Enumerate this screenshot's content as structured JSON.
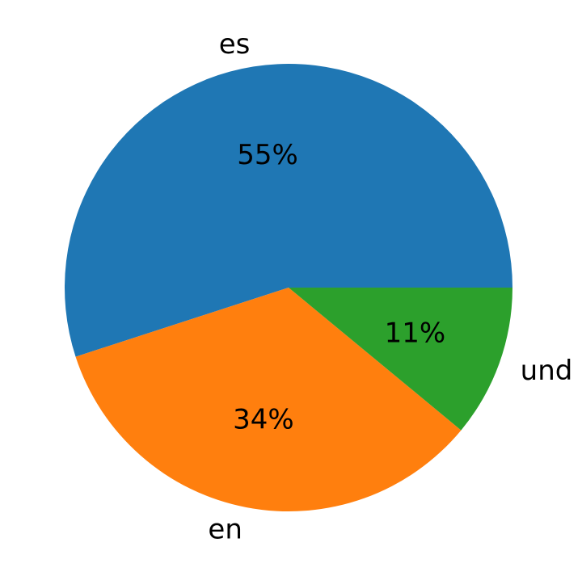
{
  "chart_data": {
    "type": "pie",
    "labels": [
      "es",
      "en",
      "und"
    ],
    "values": [
      55,
      34,
      11
    ],
    "percent_labels": [
      "55%",
      "34%",
      "11%"
    ],
    "colors": [
      "#1f77b4",
      "#ff7f0e",
      "#2ca02c"
    ],
    "start_angle_deg": 0,
    "direction": "counterclockwise",
    "legend": "none"
  }
}
